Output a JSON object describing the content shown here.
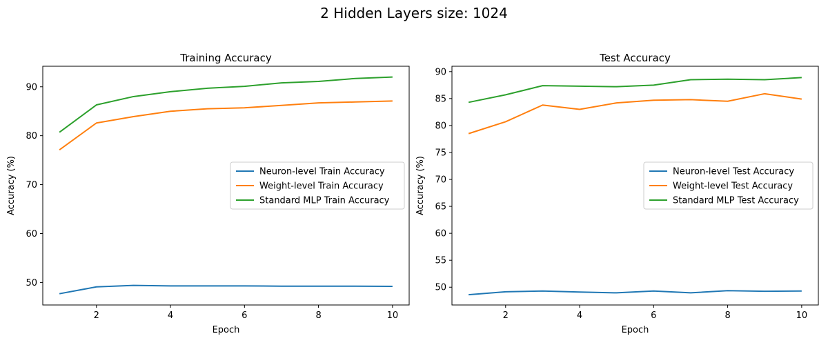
{
  "suptitle": "2 Hidden Layers size: 1024",
  "colors": {
    "neuron": "#1f77b4",
    "weight": "#ff7f0e",
    "standard": "#2ca02c"
  },
  "chart_data": [
    {
      "type": "line",
      "title": "Training Accuracy",
      "xlabel": "Epoch",
      "ylabel": "Accuracy (%)",
      "x": [
        1,
        2,
        3,
        4,
        5,
        6,
        7,
        8,
        9,
        10
      ],
      "xlim": [
        0.55,
        10.45
      ],
      "ylim": [
        45.4,
        94.2
      ],
      "xticks": [
        2,
        4,
        6,
        8,
        10
      ],
      "yticks": [
        50,
        60,
        70,
        80,
        90
      ],
      "grid": false,
      "legend_position": "center-right",
      "series": [
        {
          "name": "Neuron-level Train Accuracy",
          "color": "#1f77b4",
          "values": [
            47.7,
            49.1,
            49.4,
            49.3,
            49.3,
            49.3,
            49.25,
            49.25,
            49.25,
            49.2
          ]
        },
        {
          "name": "Weight-level Train Accuracy",
          "color": "#ff7f0e",
          "values": [
            77.1,
            82.6,
            83.9,
            85.0,
            85.5,
            85.7,
            86.2,
            86.7,
            86.9,
            87.1
          ]
        },
        {
          "name": "Standard MLP Train Accuracy",
          "color": "#2ca02c",
          "values": [
            80.7,
            86.3,
            88.0,
            89.0,
            89.7,
            90.1,
            90.8,
            91.1,
            91.7,
            92.0
          ]
        }
      ]
    },
    {
      "type": "line",
      "title": "Test Accuracy",
      "xlabel": "Epoch",
      "ylabel": "Accuracy (%)",
      "x": [
        1,
        2,
        3,
        4,
        5,
        6,
        7,
        8,
        9,
        10
      ],
      "xlim": [
        0.55,
        10.45
      ],
      "ylim": [
        46.7,
        91.0
      ],
      "xticks": [
        2,
        4,
        6,
        8,
        10
      ],
      "yticks": [
        50,
        55,
        60,
        65,
        70,
        75,
        80,
        85,
        90
      ],
      "grid": false,
      "legend_position": "center-right",
      "series": [
        {
          "name": "Neuron-level Test Accuracy",
          "color": "#1f77b4",
          "values": [
            48.6,
            49.15,
            49.3,
            49.1,
            48.95,
            49.3,
            48.95,
            49.35,
            49.25,
            49.3
          ]
        },
        {
          "name": "Weight-level Test Accuracy",
          "color": "#ff7f0e",
          "values": [
            78.5,
            80.7,
            83.8,
            83.0,
            84.2,
            84.7,
            84.8,
            84.5,
            85.9,
            84.9
          ]
        },
        {
          "name": "Standard MLP Test Accuracy",
          "color": "#2ca02c",
          "values": [
            84.3,
            85.7,
            87.4,
            87.3,
            87.2,
            87.5,
            88.5,
            88.6,
            88.5,
            88.9
          ]
        }
      ]
    }
  ]
}
